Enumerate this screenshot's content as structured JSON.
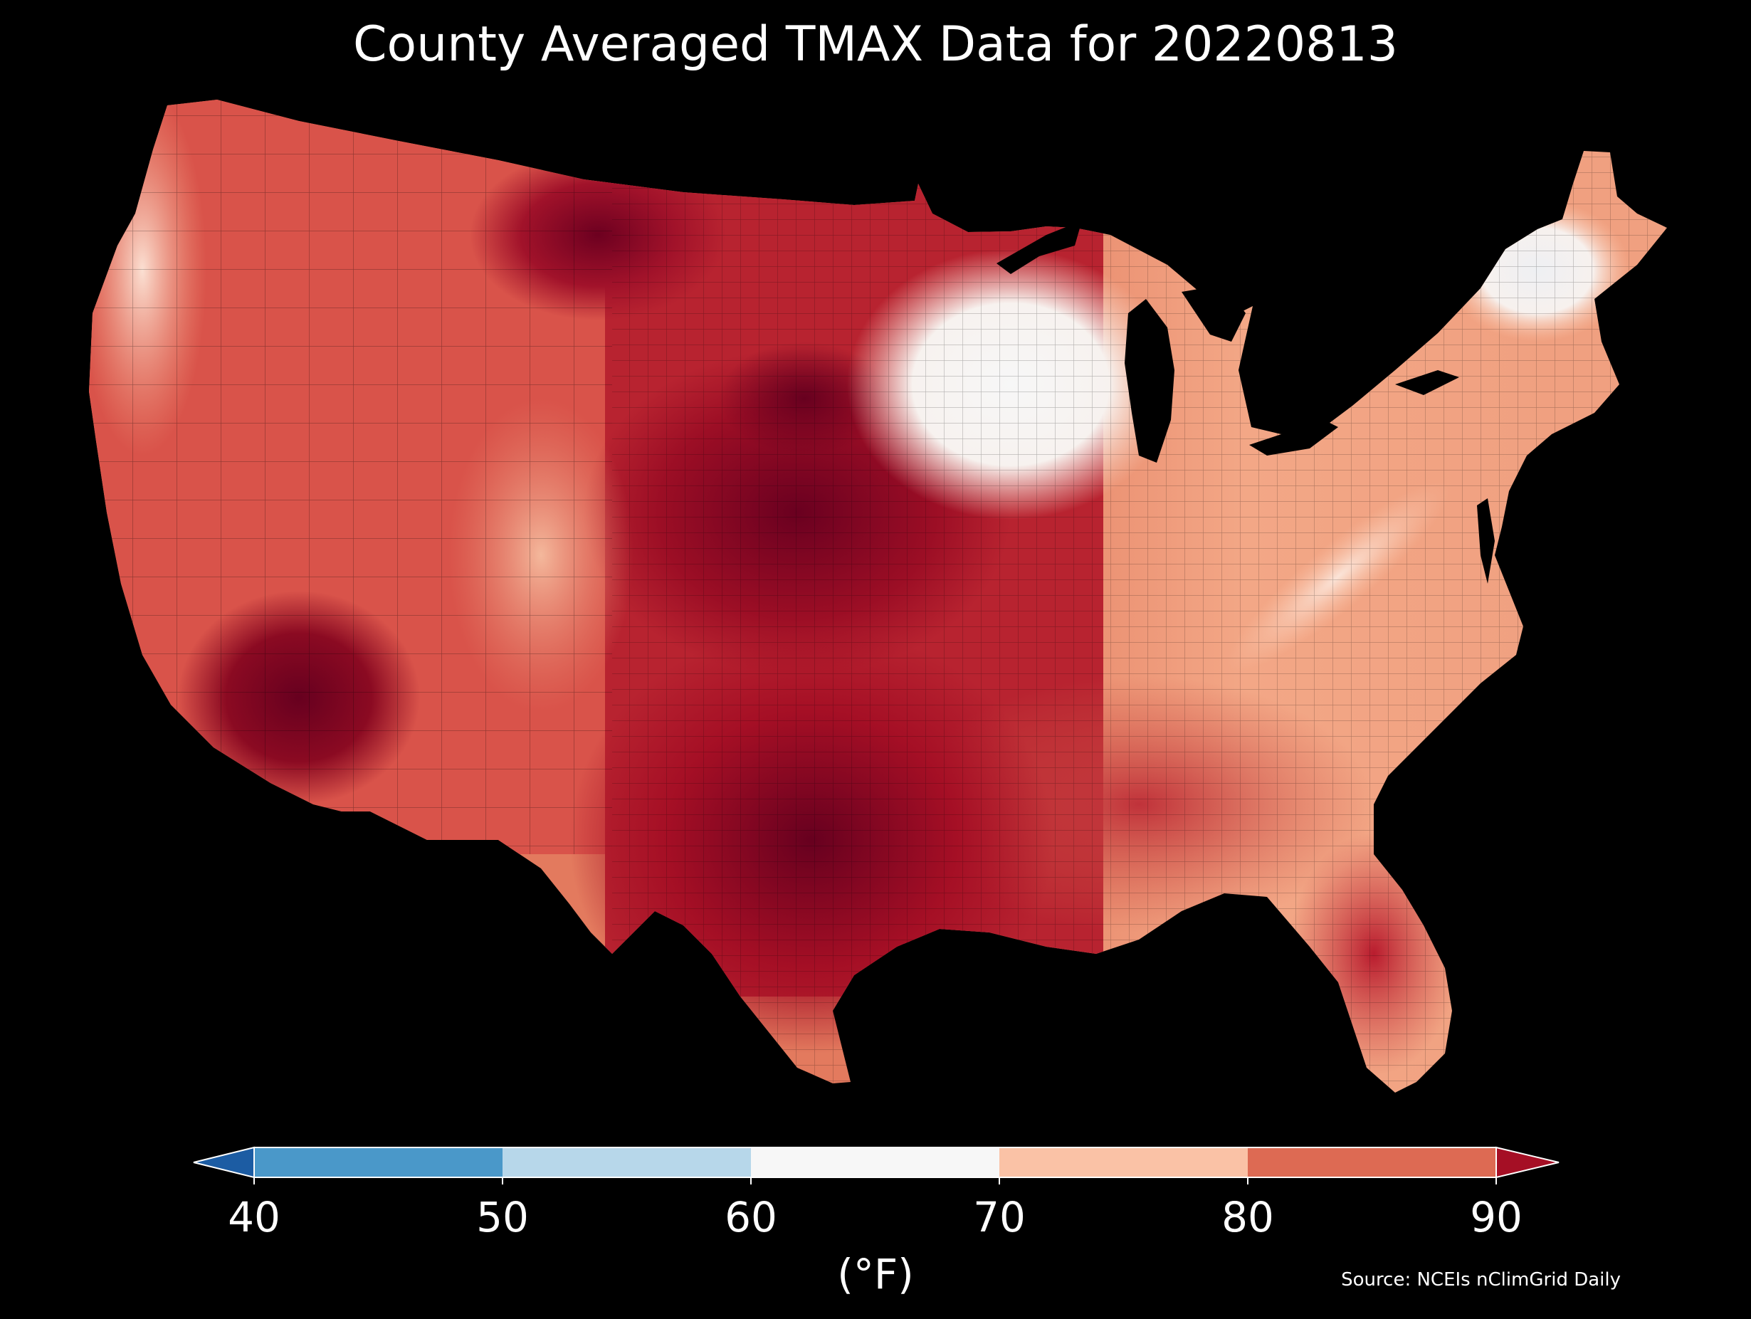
{
  "title": "County Averaged TMAX Data for 20220813",
  "colorbar": {
    "unit_label": "(°F)",
    "ticks": [
      "40",
      "50",
      "60",
      "70",
      "80",
      "90"
    ],
    "bins": [
      {
        "range": [
          40,
          50
        ],
        "color": "#4a98c9"
      },
      {
        "range": [
          50,
          60
        ],
        "color": "#b7d7ea"
      },
      {
        "range": [
          60,
          70
        ],
        "color": "#f7f7f7"
      },
      {
        "range": [
          70,
          80
        ],
        "color": "#fac2a6"
      },
      {
        "range": [
          80,
          90
        ],
        "color": "#dd6a53"
      }
    ],
    "under_color": "#1c5ca3",
    "over_color": "#a50f25",
    "extend": "both"
  },
  "source": "Source: NCEIs nClimGrid Daily",
  "map": {
    "region": "Contiguous United States",
    "variable": "TMAX",
    "aggregation": "county average",
    "date": "20220813",
    "background": "#000000",
    "border_color": "#000000"
  }
}
